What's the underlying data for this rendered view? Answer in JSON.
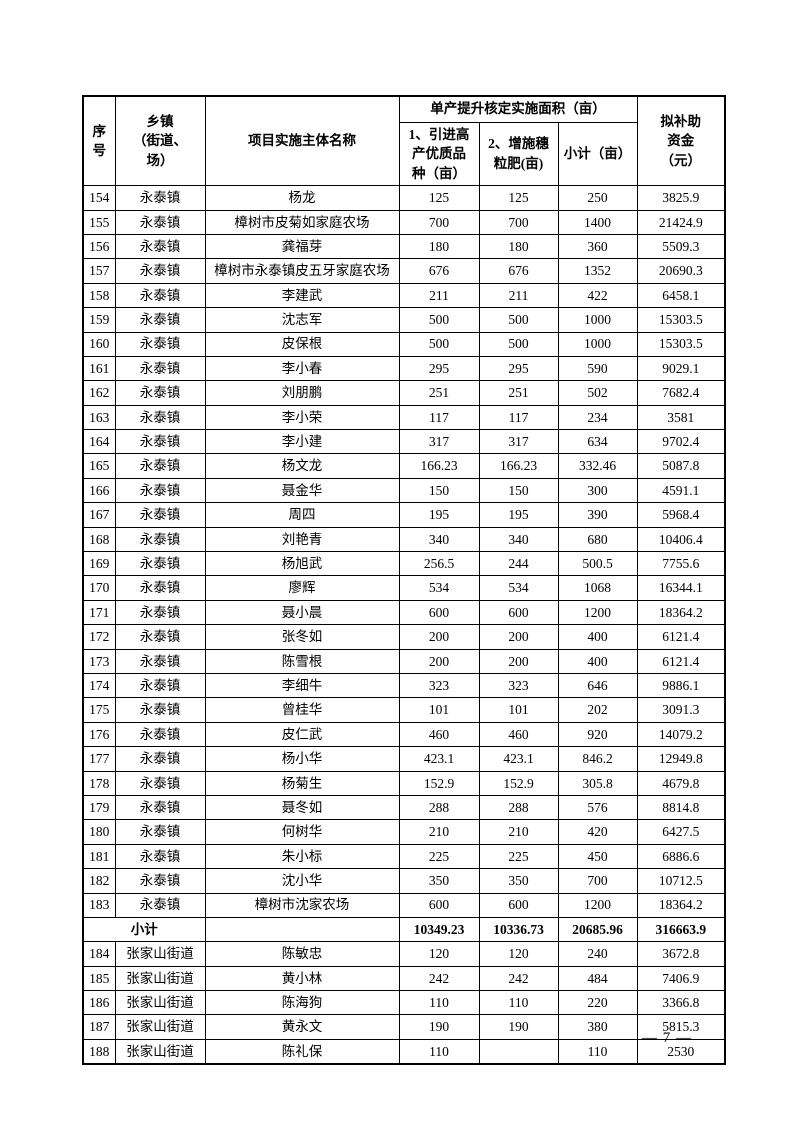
{
  "page": {
    "number_label": "— 7 —"
  },
  "table": {
    "header": {
      "seq": "序\n号",
      "township": "乡镇\n（街道、\n场）",
      "entity": "项目实施主体名称",
      "area_group": "单产提升核定实施面积（亩）",
      "area_variety": "1、引进高\n产优质品\n种（亩）",
      "area_fertilizer": "2、增施穗\n粒肥(亩)",
      "area_subtotal": "小计（亩）",
      "subsidy": "拟补助\n资金\n（元）"
    },
    "rows": [
      {
        "type": "data",
        "seq": "154",
        "township": "永泰镇",
        "entity": "杨龙",
        "variety_area": "125",
        "fertilizer_area": "125",
        "subtotal_area": "250",
        "subsidy": "3825.9"
      },
      {
        "type": "data",
        "seq": "155",
        "township": "永泰镇",
        "entity": "樟树市皮菊如家庭农场",
        "variety_area": "700",
        "fertilizer_area": "700",
        "subtotal_area": "1400",
        "subsidy": "21424.9"
      },
      {
        "type": "data",
        "seq": "156",
        "township": "永泰镇",
        "entity": "龚福芽",
        "variety_area": "180",
        "fertilizer_area": "180",
        "subtotal_area": "360",
        "subsidy": "5509.3"
      },
      {
        "type": "data",
        "seq": "157",
        "township": "永泰镇",
        "entity": "樟树市永泰镇皮五牙家庭农场",
        "variety_area": "676",
        "fertilizer_area": "676",
        "subtotal_area": "1352",
        "subsidy": "20690.3"
      },
      {
        "type": "data",
        "seq": "158",
        "township": "永泰镇",
        "entity": "李建武",
        "variety_area": "211",
        "fertilizer_area": "211",
        "subtotal_area": "422",
        "subsidy": "6458.1"
      },
      {
        "type": "data",
        "seq": "159",
        "township": "永泰镇",
        "entity": "沈志军",
        "variety_area": "500",
        "fertilizer_area": "500",
        "subtotal_area": "1000",
        "subsidy": "15303.5"
      },
      {
        "type": "data",
        "seq": "160",
        "township": "永泰镇",
        "entity": "皮保根",
        "variety_area": "500",
        "fertilizer_area": "500",
        "subtotal_area": "1000",
        "subsidy": "15303.5"
      },
      {
        "type": "data",
        "seq": "161",
        "township": "永泰镇",
        "entity": "李小春",
        "variety_area": "295",
        "fertilizer_area": "295",
        "subtotal_area": "590",
        "subsidy": "9029.1"
      },
      {
        "type": "data",
        "seq": "162",
        "township": "永泰镇",
        "entity": "刘朋鹏",
        "variety_area": "251",
        "fertilizer_area": "251",
        "subtotal_area": "502",
        "subsidy": "7682.4"
      },
      {
        "type": "data",
        "seq": "163",
        "township": "永泰镇",
        "entity": "李小荣",
        "variety_area": "117",
        "fertilizer_area": "117",
        "subtotal_area": "234",
        "subsidy": "3581"
      },
      {
        "type": "data",
        "seq": "164",
        "township": "永泰镇",
        "entity": "李小建",
        "variety_area": "317",
        "fertilizer_area": "317",
        "subtotal_area": "634",
        "subsidy": "9702.4"
      },
      {
        "type": "data",
        "seq": "165",
        "township": "永泰镇",
        "entity": "杨文龙",
        "variety_area": "166.23",
        "fertilizer_area": "166.23",
        "subtotal_area": "332.46",
        "subsidy": "5087.8"
      },
      {
        "type": "data",
        "seq": "166",
        "township": "永泰镇",
        "entity": "聂金华",
        "variety_area": "150",
        "fertilizer_area": "150",
        "subtotal_area": "300",
        "subsidy": "4591.1"
      },
      {
        "type": "data",
        "seq": "167",
        "township": "永泰镇",
        "entity": "周四",
        "variety_area": "195",
        "fertilizer_area": "195",
        "subtotal_area": "390",
        "subsidy": "5968.4"
      },
      {
        "type": "data",
        "seq": "168",
        "township": "永泰镇",
        "entity": "刘艳青",
        "variety_area": "340",
        "fertilizer_area": "340",
        "subtotal_area": "680",
        "subsidy": "10406.4"
      },
      {
        "type": "data",
        "seq": "169",
        "township": "永泰镇",
        "entity": "杨旭武",
        "variety_area": "256.5",
        "fertilizer_area": "244",
        "subtotal_area": "500.5",
        "subsidy": "7755.6"
      },
      {
        "type": "data",
        "seq": "170",
        "township": "永泰镇",
        "entity": "廖辉",
        "variety_area": "534",
        "fertilizer_area": "534",
        "subtotal_area": "1068",
        "subsidy": "16344.1"
      },
      {
        "type": "data",
        "seq": "171",
        "township": "永泰镇",
        "entity": "聂小晨",
        "variety_area": "600",
        "fertilizer_area": "600",
        "subtotal_area": "1200",
        "subsidy": "18364.2"
      },
      {
        "type": "data",
        "seq": "172",
        "township": "永泰镇",
        "entity": "张冬如",
        "variety_area": "200",
        "fertilizer_area": "200",
        "subtotal_area": "400",
        "subsidy": "6121.4"
      },
      {
        "type": "data",
        "seq": "173",
        "township": "永泰镇",
        "entity": "陈雪根",
        "variety_area": "200",
        "fertilizer_area": "200",
        "subtotal_area": "400",
        "subsidy": "6121.4"
      },
      {
        "type": "data",
        "seq": "174",
        "township": "永泰镇",
        "entity": "李细牛",
        "variety_area": "323",
        "fertilizer_area": "323",
        "subtotal_area": "646",
        "subsidy": "9886.1"
      },
      {
        "type": "data",
        "seq": "175",
        "township": "永泰镇",
        "entity": "曾桂华",
        "variety_area": "101",
        "fertilizer_area": "101",
        "subtotal_area": "202",
        "subsidy": "3091.3"
      },
      {
        "type": "data",
        "seq": "176",
        "township": "永泰镇",
        "entity": "皮仁武",
        "variety_area": "460",
        "fertilizer_area": "460",
        "subtotal_area": "920",
        "subsidy": "14079.2"
      },
      {
        "type": "data",
        "seq": "177",
        "township": "永泰镇",
        "entity": "杨小华",
        "variety_area": "423.1",
        "fertilizer_area": "423.1",
        "subtotal_area": "846.2",
        "subsidy": "12949.8"
      },
      {
        "type": "data",
        "seq": "178",
        "township": "永泰镇",
        "entity": "杨菊生",
        "variety_area": "152.9",
        "fertilizer_area": "152.9",
        "subtotal_area": "305.8",
        "subsidy": "4679.8"
      },
      {
        "type": "data",
        "seq": "179",
        "township": "永泰镇",
        "entity": "聂冬如",
        "variety_area": "288",
        "fertilizer_area": "288",
        "subtotal_area": "576",
        "subsidy": "8814.8"
      },
      {
        "type": "data",
        "seq": "180",
        "township": "永泰镇",
        "entity": "何树华",
        "variety_area": "210",
        "fertilizer_area": "210",
        "subtotal_area": "420",
        "subsidy": "6427.5"
      },
      {
        "type": "data",
        "seq": "181",
        "township": "永泰镇",
        "entity": "朱小标",
        "variety_area": "225",
        "fertilizer_area": "225",
        "subtotal_area": "450",
        "subsidy": "6886.6"
      },
      {
        "type": "data",
        "seq": "182",
        "township": "永泰镇",
        "entity": "沈小华",
        "variety_area": "350",
        "fertilizer_area": "350",
        "subtotal_area": "700",
        "subsidy": "10712.5"
      },
      {
        "type": "data",
        "seq": "183",
        "township": "永泰镇",
        "entity": "樟树市沈家农场",
        "variety_area": "600",
        "fertilizer_area": "600",
        "subtotal_area": "1200",
        "subsidy": "18364.2"
      },
      {
        "type": "subtotal",
        "label": "小计",
        "entity": "",
        "variety_area": "10349.23",
        "fertilizer_area": "10336.73",
        "subtotal_area": "20685.96",
        "subsidy": "316663.9"
      },
      {
        "type": "data",
        "seq": "184",
        "township": "张家山街道",
        "entity": "陈敏忠",
        "variety_area": "120",
        "fertilizer_area": "120",
        "subtotal_area": "240",
        "subsidy": "3672.8"
      },
      {
        "type": "data",
        "seq": "185",
        "township": "张家山街道",
        "entity": "黄小林",
        "variety_area": "242",
        "fertilizer_area": "242",
        "subtotal_area": "484",
        "subsidy": "7406.9"
      },
      {
        "type": "data",
        "seq": "186",
        "township": "张家山街道",
        "entity": "陈海狗",
        "variety_area": "110",
        "fertilizer_area": "110",
        "subtotal_area": "220",
        "subsidy": "3366.8"
      },
      {
        "type": "data",
        "seq": "187",
        "township": "张家山街道",
        "entity": "黄永文",
        "variety_area": "190",
        "fertilizer_area": "190",
        "subtotal_area": "380",
        "subsidy": "5815.3"
      },
      {
        "type": "data",
        "seq": "188",
        "township": "张家山街道",
        "entity": "陈礼保",
        "variety_area": "110",
        "fertilizer_area": "",
        "subtotal_area": "110",
        "subsidy": "2530"
      }
    ]
  }
}
